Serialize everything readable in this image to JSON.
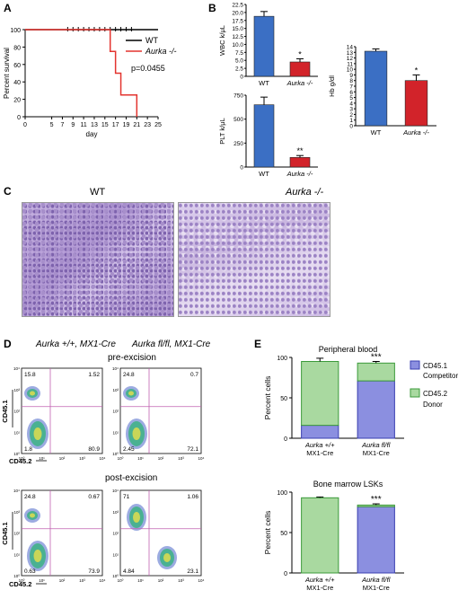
{
  "panels": {
    "A": "A",
    "B": "B",
    "C": "C",
    "D": "D",
    "E": "E"
  },
  "chart_data": [
    {
      "id": "A",
      "type": "line",
      "xlabel": "day",
      "ylabel": "Percent survival",
      "xticks": [
        "0",
        "5",
        "7",
        "9",
        "11",
        "13",
        "15",
        "17",
        "19",
        "21",
        "23",
        "25"
      ],
      "yticks": [
        "0",
        "20",
        "40",
        "60",
        "80",
        "100"
      ],
      "xlim": [
        0,
        25
      ],
      "ylim": [
        0,
        100
      ],
      "annotation": "p=0.0455",
      "series": [
        {
          "name": "WT",
          "color": "#000000",
          "x": [
            0,
            25
          ],
          "y": [
            100,
            100
          ],
          "censor_days": [
            8,
            9,
            10,
            11,
            12,
            13,
            14,
            15,
            16,
            17,
            18,
            19,
            20
          ]
        },
        {
          "name": "Aurka -/-",
          "color": "#e3342f",
          "x": [
            0,
            16,
            16,
            17,
            17,
            18,
            18,
            21,
            21
          ],
          "y": [
            100,
            100,
            75,
            75,
            50,
            50,
            25,
            25,
            0
          ]
        }
      ]
    },
    {
      "id": "B-WBC",
      "type": "bar",
      "ylabel": "WBC k/μL",
      "categories": [
        "WT",
        "Aurka -/-"
      ],
      "values": [
        18.8,
        4.5
      ],
      "errors": [
        1.5,
        1.0
      ],
      "ylim": [
        0,
        22.5
      ],
      "yticks": [
        "0",
        "2.5",
        "5.0",
        "7.5",
        "10.0",
        "12.5",
        "15.0",
        "17.5",
        "20.0",
        "22.5"
      ],
      "sig": "*",
      "colors": [
        "#3b6fc4",
        "#d2232a"
      ]
    },
    {
      "id": "B-PLT",
      "type": "bar",
      "ylabel": "PLT k/μL",
      "categories": [
        "WT",
        "Aurka -/-"
      ],
      "values": [
        650,
        100
      ],
      "errors": [
        80,
        20
      ],
      "ylim": [
        0,
        750
      ],
      "yticks": [
        "0",
        "250",
        "500",
        "750"
      ],
      "sig": "**",
      "colors": [
        "#3b6fc4",
        "#d2232a"
      ]
    },
    {
      "id": "B-Hb",
      "type": "bar",
      "ylabel": "Hb g/dl",
      "categories": [
        "WT",
        "Aurka -/-"
      ],
      "values": [
        13.2,
        8.0
      ],
      "errors": [
        0.4,
        1.0
      ],
      "ylim": [
        0,
        14
      ],
      "yticks": [
        "0",
        "1",
        "2",
        "3",
        "4",
        "5",
        "6",
        "7",
        "8",
        "9",
        "10",
        "11",
        "12",
        "13",
        "14"
      ],
      "sig": "*",
      "colors": [
        "#3b6fc4",
        "#d2232a"
      ]
    },
    {
      "id": "E-PB",
      "type": "bar",
      "title": "Peripheral blood",
      "ylabel": "Percent cells",
      "categories": [
        "Aurka +/+ MX1-Cre",
        "Aurka fl/fl MX1-Cre"
      ],
      "series": [
        {
          "name": "CD45.1 Competitor",
          "values": [
            16,
            71
          ],
          "color": "#8b8fe0"
        },
        {
          "name": "CD45.2 Donor",
          "values": [
            79,
            22
          ],
          "color": "#a9d9a0"
        }
      ],
      "errors": [
        4,
        2
      ],
      "sig": "***",
      "ylim": [
        0,
        100
      ],
      "yticks": [
        "0",
        "50",
        "100"
      ]
    },
    {
      "id": "E-BM",
      "type": "bar",
      "title": "Bone marrow LSKs",
      "ylabel": "Percent cells",
      "categories": [
        "Aurka +/+ MX1-Cre",
        "Aurka fl/fl MX1-Cre"
      ],
      "series": [
        {
          "name": "CD45.1 Competitor",
          "values": [
            0,
            82
          ],
          "color": "#8b8fe0"
        },
        {
          "name": "CD45.2 Donor",
          "values": [
            93,
            2
          ],
          "color": "#a9d9a0"
        }
      ],
      "errors": [
        1,
        1.5
      ],
      "sig": "***",
      "ylim": [
        0,
        100
      ],
      "yticks": [
        "0",
        "50",
        "100"
      ]
    }
  ],
  "panelC": {
    "wt": "WT",
    "ko": "Aurka -/-"
  },
  "panelD": {
    "col1": "Aurka +/+, MX1-Cre",
    "col2": "Aurka fl/fl, MX1-Cre",
    "pre": "pre-excision",
    "post": "post-excision",
    "xaxis": "CD45.2",
    "yaxis": "CD45.1",
    "plots": [
      {
        "tl": "15.8",
        "tr": "1.52",
        "bl": "1.8",
        "br": "80.9"
      },
      {
        "tl": "24.8",
        "tr": "0.7",
        "bl": "2.45",
        "br": "72.1"
      },
      {
        "tl": "24.8",
        "tr": "0.67",
        "bl": "0.63",
        "br": "73.9"
      },
      {
        "tl": "71",
        "tr": "1.06",
        "bl": "4.84",
        "br": "23.1"
      }
    ],
    "ticks": [
      "10⁰",
      "10¹",
      "10²",
      "10³",
      "10⁴"
    ]
  },
  "legendE": {
    "a": "CD45.1",
    "a2": "Competitor",
    "b": "CD45.2",
    "b2": "Donor"
  },
  "colors": {
    "blue": "#3b6fc4",
    "red": "#d2232a",
    "competitor": "#8b8fe0",
    "donor": "#a9d9a0",
    "gate": "#c060b0"
  }
}
